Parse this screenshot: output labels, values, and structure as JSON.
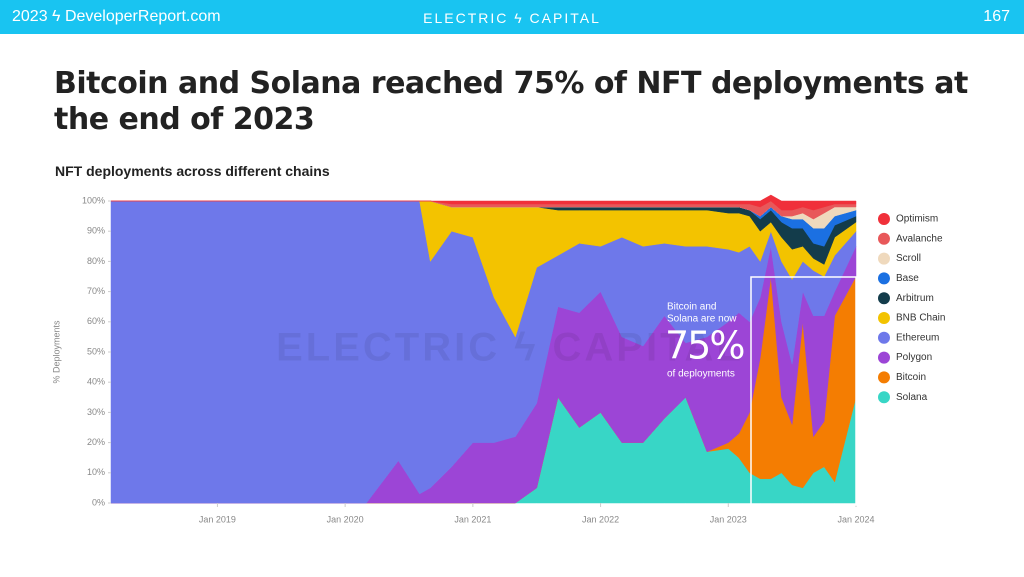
{
  "header": {
    "site": "2023 ϟ DeveloperReport.com",
    "logo": "ELECTRIC ϟ CAPITAL",
    "page": "167"
  },
  "chart_data": {
    "type": "stacked-area",
    "title": "Bitcoin and Solana reached 75% of NFT deployments at the end of 2023",
    "subtitle": "NFT deployments across different chains",
    "ylabel": "% Deployments",
    "annotation": {
      "lines": [
        "Bitcoin and",
        "Solana are now"
      ],
      "big": "75%",
      "note": "of deployments"
    },
    "legend": "right",
    "xlim": [
      "2018-03",
      "2024-01"
    ],
    "xticks": [
      {
        "value": "2019-01",
        "label": "Jan 2019"
      },
      {
        "value": "2020-01",
        "label": "Jan 2020"
      },
      {
        "value": "2021-01",
        "label": "Jan 2021"
      },
      {
        "value": "2022-01",
        "label": "Jan 2022"
      },
      {
        "value": "2023-01",
        "label": "Jan 2023"
      },
      {
        "value": "2024-01",
        "label": "Jan 2024"
      }
    ],
    "ylim": [
      0,
      100
    ],
    "yticks": [
      {
        "value": 0,
        "label": "0%"
      },
      {
        "value": 10,
        "label": "10%"
      },
      {
        "value": 20,
        "label": "20%"
      },
      {
        "value": 30,
        "label": "30%"
      },
      {
        "value": 40,
        "label": "40%"
      },
      {
        "value": 50,
        "label": "50%"
      },
      {
        "value": 60,
        "label": "60%"
      },
      {
        "value": 70,
        "label": "70%"
      },
      {
        "value": 80,
        "label": "80%"
      },
      {
        "value": 90,
        "label": "90%"
      },
      {
        "value": 100,
        "label": "100%"
      }
    ],
    "x": [
      "2018-03",
      "2020-03",
      "2020-06",
      "2020-08",
      "2020-09",
      "2020-11",
      "2021-01",
      "2021-03",
      "2021-05",
      "2021-07",
      "2021-09",
      "2021-11",
      "2022-01",
      "2022-03",
      "2022-05",
      "2022-07",
      "2022-09",
      "2022-11",
      "2023-01",
      "2023-02",
      "2023-03",
      "2023-04",
      "2023-05",
      "2023-06",
      "2023-07",
      "2023-08",
      "2023-09",
      "2023-10",
      "2023-11",
      "2024-01"
    ],
    "series": [
      {
        "name": "Solana",
        "color": "#38d6c6",
        "values": [
          0,
          0,
          0,
          0,
          0,
          0,
          0,
          0,
          0,
          5,
          35,
          25,
          30,
          20,
          20,
          28,
          35,
          17,
          18,
          15,
          10,
          8,
          8,
          10,
          6,
          5,
          10,
          12,
          7,
          35
        ]
      },
      {
        "name": "Bitcoin",
        "color": "#f47d02",
        "values": [
          0,
          0,
          0,
          0,
          0,
          0,
          0,
          0,
          0,
          0,
          0,
          0,
          0,
          0,
          0,
          0,
          0,
          0,
          2,
          8,
          20,
          40,
          67,
          25,
          20,
          55,
          12,
          15,
          55,
          40
        ]
      },
      {
        "name": "Polygon",
        "color": "#9c45d6",
        "values": [
          0,
          0,
          14,
          3,
          5,
          12,
          20,
          20,
          22,
          28,
          30,
          38,
          40,
          35,
          32,
          34,
          18,
          38,
          40,
          40,
          30,
          20,
          10,
          25,
          20,
          10,
          40,
          35,
          8,
          10
        ]
      },
      {
        "name": "Ethereum",
        "color": "#6e78ea",
        "values": [
          100,
          100,
          86,
          97,
          75,
          78,
          68,
          48,
          33,
          45,
          17,
          23,
          15,
          33,
          33,
          24,
          32,
          30,
          24,
          20,
          25,
          12,
          5,
          20,
          28,
          10,
          15,
          13,
          12,
          5
        ]
      },
      {
        "name": "BNB Chain",
        "color": "#f3c300",
        "values": [
          0,
          0,
          0,
          0,
          20,
          8,
          10,
          30,
          43,
          20,
          15,
          11,
          12,
          9,
          12,
          11,
          12,
          12,
          12,
          13,
          10,
          10,
          3,
          8,
          10,
          5,
          4,
          4,
          6,
          3
        ]
      },
      {
        "name": "Arbitrum",
        "color": "#133c4b",
        "values": [
          0,
          0,
          0,
          0,
          0,
          0,
          0,
          0,
          0,
          0,
          1,
          1,
          1,
          1,
          1,
          1,
          1,
          1,
          2,
          2,
          2,
          4,
          4,
          5,
          7,
          6,
          5,
          6,
          4,
          2
        ]
      },
      {
        "name": "Base",
        "color": "#1b70e2",
        "values": [
          0,
          0,
          0,
          0,
          0,
          0,
          0,
          0,
          0,
          0,
          0,
          0,
          0,
          0,
          0,
          0,
          0,
          0,
          0,
          0,
          0,
          1,
          1,
          2,
          3,
          3,
          5,
          6,
          3,
          2
        ]
      },
      {
        "name": "Scroll",
        "color": "#efd9bd",
        "values": [
          0,
          0,
          0,
          0,
          0,
          0,
          0,
          0,
          0,
          0,
          0,
          0,
          0,
          0,
          0,
          0,
          0,
          0,
          0,
          0,
          0,
          0,
          0,
          0,
          1,
          2,
          3,
          5,
          3,
          1
        ]
      },
      {
        "name": "Avalanche",
        "color": "#e8585a",
        "values": [
          0,
          0,
          0,
          0,
          0,
          1,
          1,
          1,
          1,
          1,
          1,
          1,
          1,
          1,
          1,
          1,
          1,
          1,
          1,
          1,
          2,
          3,
          2,
          2,
          2,
          2,
          3,
          2,
          1,
          1
        ]
      },
      {
        "name": "Optimism",
        "color": "#f0303a",
        "values": [
          0,
          0,
          0,
          0,
          0,
          1,
          1,
          1,
          1,
          1,
          1,
          1,
          1,
          1,
          1,
          1,
          1,
          1,
          1,
          1,
          1,
          2,
          2,
          3,
          3,
          2,
          3,
          2,
          1,
          1
        ]
      }
    ]
  }
}
